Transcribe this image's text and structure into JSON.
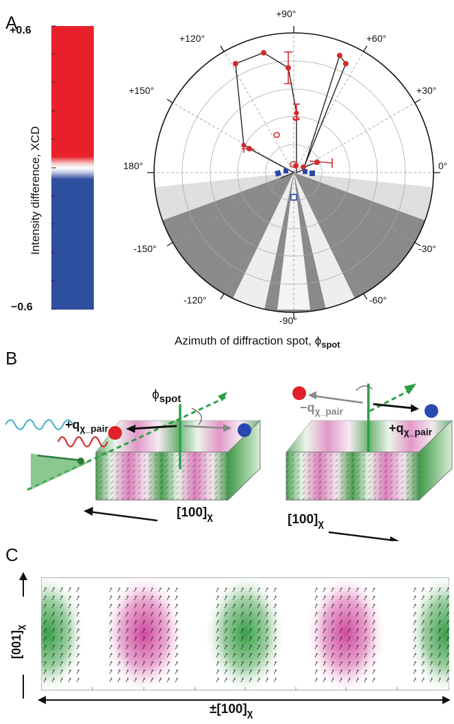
{
  "panels": {
    "a": "A",
    "b": "B",
    "c": "C"
  },
  "colorbar": {
    "max_label": "+0.6",
    "min_label": "−0.6",
    "title": "Intensity difference, XCD",
    "colors": {
      "positive": "#e8202a",
      "negative": "#2e4fa0"
    }
  },
  "polar": {
    "angle_labels": [
      "+90°",
      "+60°",
      "+30°",
      "0°",
      "-30°",
      "-60°",
      "-90°",
      "-120°",
      "-150°",
      "180°",
      "+150°",
      "+120°"
    ],
    "xlabel_main": "Azimuth of diffraction spot, ϕ",
    "xlabel_sub": "spot"
  },
  "panel_b": {
    "phi_main": "ϕ",
    "phi_sub": "spot",
    "left_q_main": "+q",
    "left_q_sub": "χ_pair",
    "right_neg_q_main": "−q",
    "right_neg_q_sub": "χ_pair",
    "right_q_main": "+q",
    "right_q_sub": "χ_pair",
    "left_axis_main": "[100]",
    "left_axis_sub": "χ",
    "right_axis_main": "[100]",
    "right_axis_sub": "χ"
  },
  "panel_c": {
    "y_axis_main": "[001]",
    "y_axis_sub": "χ",
    "x_axis_main": "±[100]",
    "x_axis_sub": "χ"
  },
  "colors": {
    "magenta": "#d04a9e",
    "green": "#3aa04a",
    "cyan": "#3bb0c8",
    "red": "#d42a2a"
  }
}
